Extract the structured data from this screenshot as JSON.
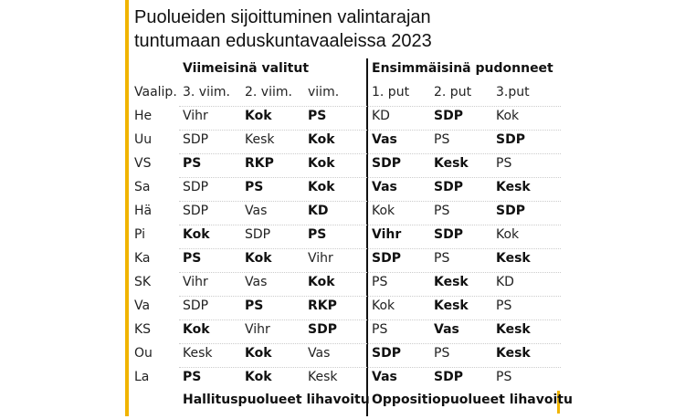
{
  "header": {
    "title": [
      "Puolueiden sijoittuminen valintarajan",
      "tuntumaan eduskuntavaaleissa 2023"
    ]
  },
  "table": {
    "groups": [
      "Viimeisinä valitut",
      "Ensimmäisinä pudonneet"
    ],
    "columns": [
      "Vaalip.",
      "3. viim.",
      "2. viim.",
      "viim.",
      "1. put",
      "2. put",
      "3.put"
    ],
    "rows": [
      {
        "district": "He",
        "cells": [
          {
            "text": "Vihr",
            "bold": false
          },
          {
            "text": "Kok",
            "bold": true
          },
          {
            "text": "PS",
            "bold": true
          },
          {
            "text": "KD",
            "bold": false
          },
          {
            "text": "SDP",
            "bold": true
          },
          {
            "text": "Kok",
            "bold": false
          }
        ]
      },
      {
        "district": "Uu",
        "cells": [
          {
            "text": "SDP",
            "bold": false
          },
          {
            "text": "Kesk",
            "bold": false
          },
          {
            "text": "Kok",
            "bold": true
          },
          {
            "text": "Vas",
            "bold": true
          },
          {
            "text": "PS",
            "bold": false
          },
          {
            "text": "SDP",
            "bold": true
          }
        ]
      },
      {
        "district": "VS",
        "cells": [
          {
            "text": "PS",
            "bold": true
          },
          {
            "text": "RKP",
            "bold": true
          },
          {
            "text": "Kok",
            "bold": true
          },
          {
            "text": "SDP",
            "bold": true
          },
          {
            "text": "Kesk",
            "bold": true
          },
          {
            "text": "PS",
            "bold": false
          }
        ]
      },
      {
        "district": "Sa",
        "cells": [
          {
            "text": "SDP",
            "bold": false
          },
          {
            "text": "PS",
            "bold": true
          },
          {
            "text": "Kok",
            "bold": true
          },
          {
            "text": "Vas",
            "bold": true
          },
          {
            "text": "SDP",
            "bold": true
          },
          {
            "text": "Kesk",
            "bold": true
          }
        ]
      },
      {
        "district": "Hä",
        "cells": [
          {
            "text": "SDP",
            "bold": false
          },
          {
            "text": "Vas",
            "bold": false
          },
          {
            "text": "KD",
            "bold": true
          },
          {
            "text": "Kok",
            "bold": false
          },
          {
            "text": "PS",
            "bold": false
          },
          {
            "text": "SDP",
            "bold": true
          }
        ]
      },
      {
        "district": "Pi",
        "cells": [
          {
            "text": "Kok",
            "bold": true
          },
          {
            "text": "SDP",
            "bold": false
          },
          {
            "text": "PS",
            "bold": true
          },
          {
            "text": "Vihr",
            "bold": true
          },
          {
            "text": "SDP",
            "bold": true
          },
          {
            "text": "Kok",
            "bold": false
          }
        ]
      },
      {
        "district": "Ka",
        "cells": [
          {
            "text": "PS",
            "bold": true
          },
          {
            "text": "Kok",
            "bold": true
          },
          {
            "text": "Vihr",
            "bold": false
          },
          {
            "text": "SDP",
            "bold": true
          },
          {
            "text": "PS",
            "bold": false
          },
          {
            "text": "Kesk",
            "bold": true
          }
        ]
      },
      {
        "district": "SK",
        "cells": [
          {
            "text": "Vihr",
            "bold": false
          },
          {
            "text": "Vas",
            "bold": false
          },
          {
            "text": "Kok",
            "bold": true
          },
          {
            "text": "PS",
            "bold": false
          },
          {
            "text": "Kesk",
            "bold": true
          },
          {
            "text": "KD",
            "bold": false
          }
        ]
      },
      {
        "district": "Va",
        "cells": [
          {
            "text": "SDP",
            "bold": false
          },
          {
            "text": "PS",
            "bold": true
          },
          {
            "text": "RKP",
            "bold": true
          },
          {
            "text": "Kok",
            "bold": false
          },
          {
            "text": "Kesk",
            "bold": true
          },
          {
            "text": "PS",
            "bold": false
          }
        ]
      },
      {
        "district": "KS",
        "cells": [
          {
            "text": "Kok",
            "bold": true
          },
          {
            "text": "Vihr",
            "bold": false
          },
          {
            "text": "SDP",
            "bold": true
          },
          {
            "text": "PS",
            "bold": false
          },
          {
            "text": "Vas",
            "bold": true
          },
          {
            "text": "Kesk",
            "bold": true
          }
        ]
      },
      {
        "district": "Ou",
        "cells": [
          {
            "text": "Kesk",
            "bold": false
          },
          {
            "text": "Kok",
            "bold": true
          },
          {
            "text": "Vas",
            "bold": false
          },
          {
            "text": "SDP",
            "bold": true
          },
          {
            "text": "PS",
            "bold": false
          },
          {
            "text": "Kesk",
            "bold": true
          }
        ]
      },
      {
        "district": "La",
        "cells": [
          {
            "text": "PS",
            "bold": true
          },
          {
            "text": "Kok",
            "bold": true
          },
          {
            "text": "Kesk",
            "bold": false
          },
          {
            "text": "Vas",
            "bold": true
          },
          {
            "text": "SDP",
            "bold": true
          },
          {
            "text": "PS",
            "bold": false
          }
        ]
      }
    ],
    "footnotes": [
      "Hallituspuolueet lihavoitu",
      "Oppositiopuolueet lihavoitu"
    ]
  }
}
